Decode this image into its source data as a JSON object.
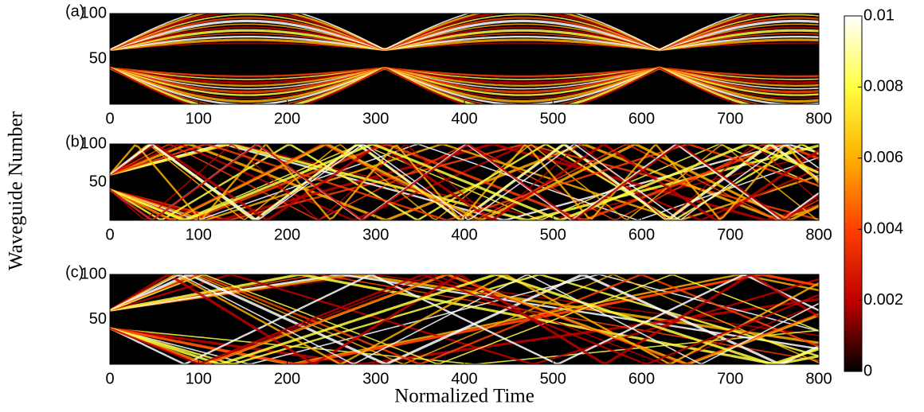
{
  "chart_data": [
    {
      "type": "heatmap",
      "panel_label": "(a)",
      "xlim": [
        0,
        800
      ],
      "xticks": [
        0,
        100,
        200,
        300,
        400,
        500,
        600,
        700,
        800
      ],
      "ylim": [
        0,
        100
      ],
      "yticks": [
        50,
        100
      ]
    },
    {
      "type": "heatmap",
      "panel_label": "(b)",
      "xlim": [
        0,
        800
      ],
      "xticks": [
        0,
        100,
        200,
        300,
        400,
        500,
        600,
        700,
        800
      ],
      "ylim": [
        0,
        100
      ],
      "yticks": [
        50,
        100
      ]
    },
    {
      "type": "heatmap",
      "panel_label": "(c)",
      "xlim": [
        0,
        800
      ],
      "xticks": [
        0,
        100,
        200,
        300,
        400,
        500,
        600,
        700,
        800
      ],
      "ylim": [
        0,
        100
      ],
      "yticks": [
        50,
        100
      ]
    }
  ],
  "y_label": "Waveguide Number",
  "x_label": "Normalized Time",
  "colorbar": {
    "clim": [
      0,
      0.01
    ],
    "ticks": [
      0,
      0.002,
      0.004,
      0.006,
      0.008,
      0.01
    ],
    "colormap": [
      "#000000",
      "#c00000",
      "#ff4000",
      "#ffb000",
      "#ffff40",
      "#ffffff"
    ]
  }
}
